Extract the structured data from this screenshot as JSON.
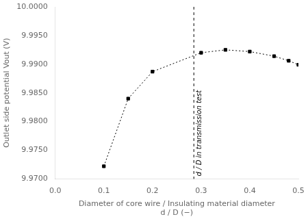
{
  "chart_data": {
    "type": "line",
    "x": [
      0.1,
      0.15,
      0.2,
      0.3,
      0.35,
      0.4,
      0.45,
      0.48,
      0.5
    ],
    "values": [
      9.9722,
      9.984,
      9.9887,
      9.992,
      9.9925,
      9.9922,
      9.9914,
      9.9906,
      9.9899
    ],
    "color": "black",
    "marker": "square",
    "line_style": "dotted",
    "xlabel": [
      "Diameter of core wire / Insulating material diameter",
      "d / D (−)"
    ],
    "ylabel": "Outlet side potential Vout (V)",
    "xlim": [
      0.0,
      0.5
    ],
    "ylim": [
      9.97,
      10.0
    ],
    "xticks": [
      {
        "value": 0.0,
        "label": "0.0"
      },
      0.1,
      0.2,
      0.3,
      0.4,
      0.5
    ],
    "yticks": [
      {
        "value": 9.97,
        "label": "9.9700"
      },
      {
        "value": 9.975,
        "label": "9.9750"
      },
      {
        "value": 9.98,
        "label": "9.9800"
      },
      {
        "value": 9.985,
        "label": "9.9850"
      },
      {
        "value": 9.99,
        "label": "9.9900"
      },
      {
        "value": 9.995,
        "label": "9.9950"
      },
      {
        "value": 10.0,
        "label": "10.0000"
      }
    ],
    "annotations": [
      {
        "type": "vline",
        "x": 0.285,
        "label": "d / D in transmission test",
        "color": "black"
      }
    ],
    "grid": false
  }
}
